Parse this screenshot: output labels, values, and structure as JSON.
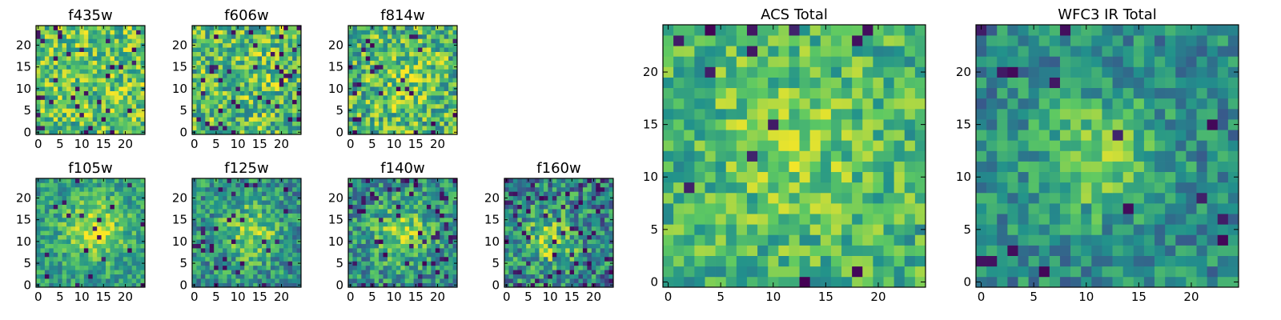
{
  "figure": {
    "colormap": "viridis",
    "colormap_stops": [
      "#440154",
      "#3b528b",
      "#21918c",
      "#5ec962",
      "#fde725"
    ],
    "background": "#ffffff",
    "axis_color": "#000000"
  },
  "chart_data": [
    {
      "type": "heatmap",
      "title": "f435w",
      "grid_size": 25,
      "xlim": [
        0,
        24
      ],
      "ylim": [
        0,
        24
      ],
      "xticks": [
        0,
        5,
        10,
        15,
        20
      ],
      "yticks": [
        0,
        5,
        10,
        15,
        20
      ],
      "seed": 11,
      "bias": 0.72,
      "blob_amp": 0.0,
      "blob_center": [
        12,
        12
      ],
      "blob_sigma": 6,
      "noise": 0.28,
      "dark_fraction": 0.05
    },
    {
      "type": "heatmap",
      "title": "f606w",
      "grid_size": 25,
      "xlim": [
        0,
        24
      ],
      "ylim": [
        0,
        24
      ],
      "xticks": [
        0,
        5,
        10,
        15,
        20
      ],
      "yticks": [
        0,
        5,
        10,
        15,
        20
      ],
      "seed": 23,
      "bias": 0.68,
      "blob_amp": 0.05,
      "blob_center": [
        13,
        12
      ],
      "blob_sigma": 6,
      "noise": 0.3,
      "dark_fraction": 0.06
    },
    {
      "type": "heatmap",
      "title": "f814w",
      "grid_size": 25,
      "xlim": [
        0,
        24
      ],
      "ylim": [
        0,
        24
      ],
      "xticks": [
        0,
        5,
        10,
        15,
        20
      ],
      "yticks": [
        0,
        5,
        10,
        15,
        20
      ],
      "seed": 37,
      "bias": 0.66,
      "blob_amp": 0.12,
      "blob_center": [
        13,
        12
      ],
      "blob_sigma": 5,
      "noise": 0.3,
      "dark_fraction": 0.05
    },
    {
      "type": "heatmap",
      "title": "f105w",
      "grid_size": 25,
      "xlim": [
        0,
        24
      ],
      "ylim": [
        0,
        24
      ],
      "xticks": [
        0,
        5,
        10,
        15,
        20
      ],
      "yticks": [
        0,
        5,
        10,
        15,
        20
      ],
      "seed": 41,
      "bias": 0.55,
      "blob_amp": 0.35,
      "blob_center": [
        13,
        13
      ],
      "blob_sigma": 5,
      "noise": 0.2,
      "dark_fraction": 0.03
    },
    {
      "type": "heatmap",
      "title": "f125w",
      "grid_size": 25,
      "xlim": [
        0,
        24
      ],
      "ylim": [
        0,
        24
      ],
      "xticks": [
        0,
        5,
        10,
        15,
        20
      ],
      "yticks": [
        0,
        5,
        10,
        15,
        20
      ],
      "seed": 53,
      "bias": 0.5,
      "blob_amp": 0.3,
      "blob_center": [
        13,
        12
      ],
      "blob_sigma": 5,
      "noise": 0.25,
      "dark_fraction": 0.07
    },
    {
      "type": "heatmap",
      "title": "f140w",
      "grid_size": 25,
      "xlim": [
        0,
        24
      ],
      "ylim": [
        0,
        24
      ],
      "xticks": [
        0,
        5,
        10,
        15,
        20
      ],
      "yticks": [
        0,
        5,
        10,
        15,
        20
      ],
      "seed": 67,
      "bias": 0.5,
      "blob_amp": 0.3,
      "blob_center": [
        12,
        12
      ],
      "blob_sigma": 5,
      "noise": 0.25,
      "dark_fraction": 0.07
    },
    {
      "type": "heatmap",
      "title": "f160w",
      "grid_size": 25,
      "xlim": [
        0,
        24
      ],
      "ylim": [
        0,
        24
      ],
      "xticks": [
        0,
        5,
        10,
        15,
        20
      ],
      "yticks": [
        0,
        5,
        10,
        15,
        20
      ],
      "seed": 79,
      "bias": 0.45,
      "blob_amp": 0.3,
      "blob_center": [
        10,
        10
      ],
      "blob_sigma": 5,
      "noise": 0.3,
      "dark_fraction": 0.1
    },
    {
      "type": "heatmap",
      "title": "ACS Total",
      "grid_size": 25,
      "xlim": [
        0,
        24
      ],
      "ylim": [
        0,
        24
      ],
      "xticks": [
        0,
        5,
        10,
        15,
        20
      ],
      "yticks": [
        0,
        5,
        10,
        15,
        20
      ],
      "seed": 97,
      "bias": 0.64,
      "blob_amp": 0.15,
      "blob_center": [
        12,
        13
      ],
      "blob_sigma": 6,
      "noise": 0.22,
      "dark_fraction": 0.03
    },
    {
      "type": "heatmap",
      "title": "WFC3 IR Total",
      "grid_size": 25,
      "xlim": [
        0,
        24
      ],
      "ylim": [
        0,
        24
      ],
      "xticks": [
        0,
        5,
        10,
        15,
        20
      ],
      "yticks": [
        0,
        5,
        10,
        15,
        20
      ],
      "seed": 113,
      "bias": 0.47,
      "blob_amp": 0.35,
      "blob_center": [
        11,
        12
      ],
      "blob_sigma": 4,
      "noise": 0.2,
      "dark_fraction": 0.02
    }
  ]
}
